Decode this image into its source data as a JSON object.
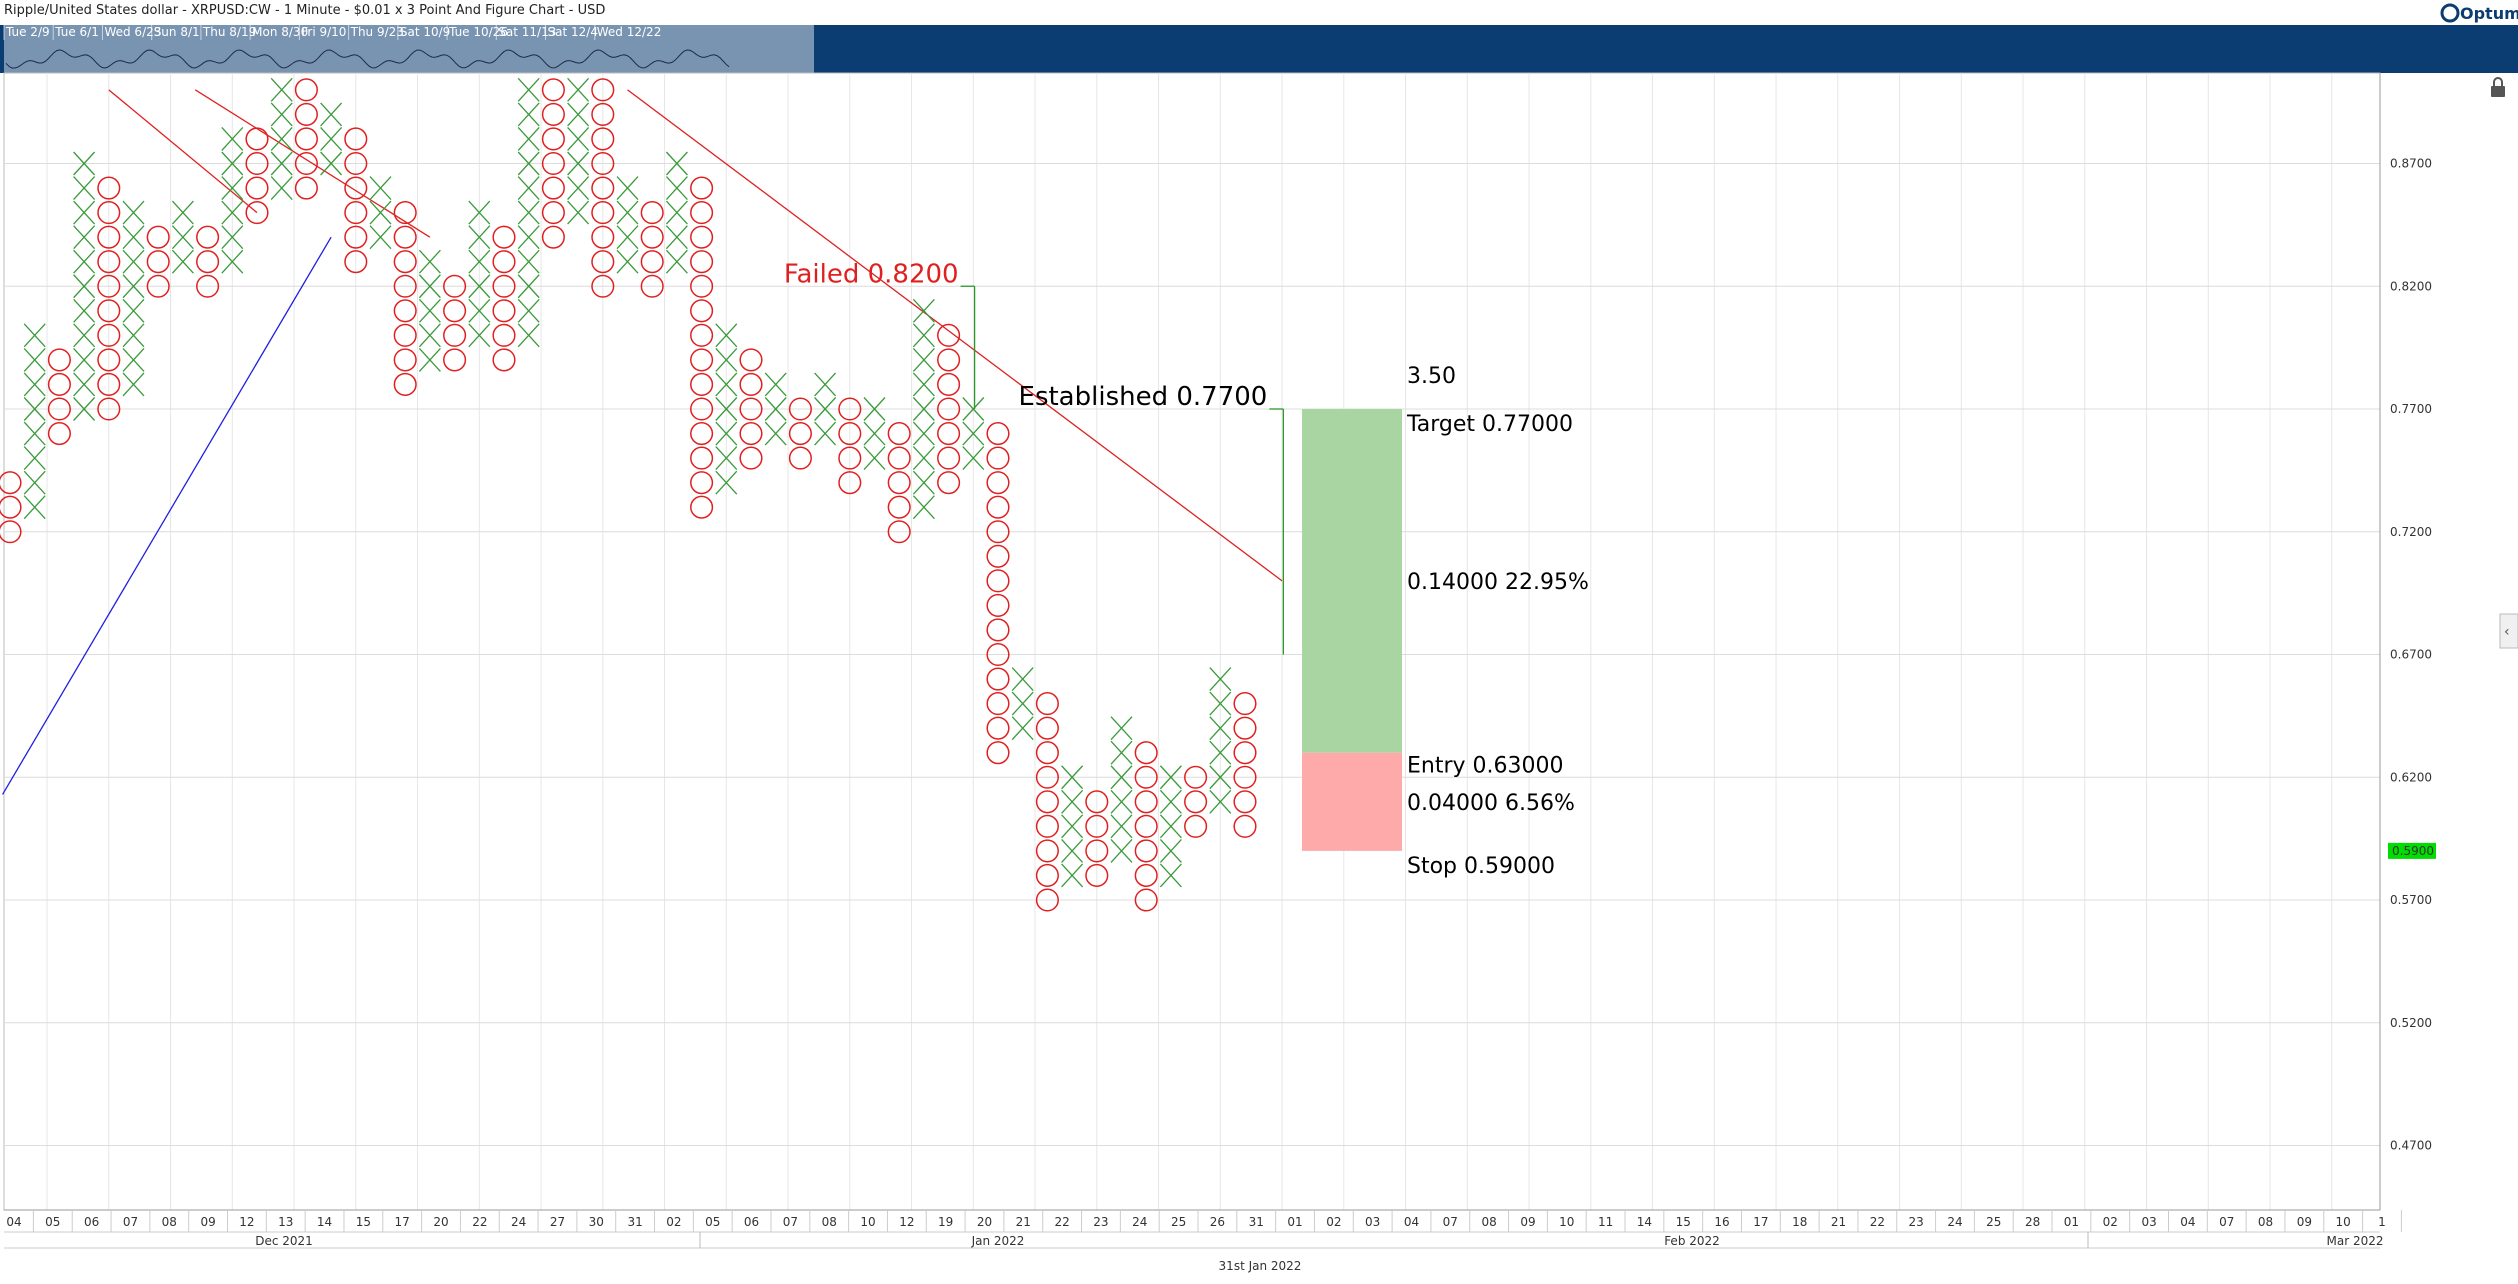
{
  "header": {
    "title": "Ripple/United States dollar - XRPUSD:CW - 1 Minute - $0.01 x 3 Point And Figure Chart - USD",
    "brand": "Optuma",
    "navigator_labels": [
      "Tue 2/9",
      "Tue 6/1",
      "Wed 6/23",
      "Sun 8/1",
      "Thu 8/19",
      "Mon 8/30",
      "Fri 9/10",
      "Thu 9/23",
      "Sat 10/9",
      "Tue 10/26",
      "Sat 11/13",
      "Sat 12/4",
      "Wed 12/22"
    ]
  },
  "footer": {
    "date_label": "31st Jan 2022"
  },
  "colors": {
    "x_mark": "#3a9a3a",
    "o_mark": "#e02020",
    "trend_down": "#e02020",
    "trend_up": "#2020e0",
    "target_zone": "#a8d5a2",
    "stop_zone": "#ffaaaa",
    "price_badge": "#00dd00",
    "nav_bg": "#0b3d72"
  },
  "chart_data": {
    "type": "point_and_figure",
    "box_size": 0.01,
    "reversal": 3,
    "ylim": [
      0.44,
      0.9
    ],
    "y_ticks": [
      "0.8700",
      "0.8200",
      "0.7700",
      "0.7200",
      "0.6700",
      "0.6200",
      "0.5700",
      "0.5200",
      "0.4700"
    ],
    "current_price": "0.5900",
    "x_labels": [
      "04",
      "05",
      "06",
      "07",
      "08",
      "09",
      "12",
      "13",
      "14",
      "15",
      "17",
      "20",
      "22",
      "24",
      "27",
      "30",
      "31",
      "02",
      "05",
      "06",
      "07",
      "08",
      "10",
      "12",
      "19",
      "20",
      "21",
      "22",
      "23",
      "24",
      "25",
      "26",
      "31",
      "01",
      "02",
      "03",
      "04",
      "07",
      "08",
      "09",
      "10",
      "11",
      "14",
      "15",
      "16",
      "17",
      "18",
      "21",
      "22",
      "23",
      "24",
      "25",
      "28",
      "01",
      "02",
      "03",
      "04",
      "07",
      "08",
      "09",
      "10",
      "1"
    ],
    "month_labels": [
      "Dec 2021",
      "Jan 2022",
      "Feb 2022",
      "Mar 2022"
    ],
    "columns": [
      {
        "type": "O",
        "high": 0.74,
        "low": 0.72
      },
      {
        "type": "X",
        "low": 0.73,
        "high": 0.8
      },
      {
        "type": "O",
        "high": 0.79,
        "low": 0.76
      },
      {
        "type": "X",
        "low": 0.77,
        "high": 0.87
      },
      {
        "type": "O",
        "high": 0.86,
        "low": 0.77
      },
      {
        "type": "X",
        "low": 0.78,
        "high": 0.85
      },
      {
        "type": "O",
        "high": 0.84,
        "low": 0.82
      },
      {
        "type": "X",
        "low": 0.83,
        "high": 0.85
      },
      {
        "type": "O",
        "high": 0.84,
        "low": 0.82
      },
      {
        "type": "X",
        "low": 0.83,
        "high": 0.88
      },
      {
        "type": "O",
        "high": 0.88,
        "low": 0.85
      },
      {
        "type": "X",
        "low": 0.86,
        "high": 0.9
      },
      {
        "type": "O",
        "high": 0.9,
        "low": 0.86
      },
      {
        "type": "X",
        "low": 0.87,
        "high": 0.89
      },
      {
        "type": "O",
        "high": 0.88,
        "low": 0.83
      },
      {
        "type": "X",
        "low": 0.84,
        "high": 0.86
      },
      {
        "type": "O",
        "high": 0.85,
        "low": 0.78
      },
      {
        "type": "X",
        "low": 0.79,
        "high": 0.83
      },
      {
        "type": "O",
        "high": 0.82,
        "low": 0.79
      },
      {
        "type": "X",
        "low": 0.8,
        "high": 0.85
      },
      {
        "type": "O",
        "high": 0.84,
        "low": 0.79
      },
      {
        "type": "X",
        "low": 0.8,
        "high": 0.9
      },
      {
        "type": "O",
        "high": 0.9,
        "low": 0.84
      },
      {
        "type": "X",
        "low": 0.85,
        "high": 0.9
      },
      {
        "type": "O",
        "high": 0.9,
        "low": 0.82
      },
      {
        "type": "X",
        "low": 0.83,
        "high": 0.86
      },
      {
        "type": "O",
        "high": 0.85,
        "low": 0.82
      },
      {
        "type": "X",
        "low": 0.83,
        "high": 0.87
      },
      {
        "type": "O",
        "high": 0.86,
        "low": 0.73
      },
      {
        "type": "X",
        "low": 0.74,
        "high": 0.8
      },
      {
        "type": "O",
        "high": 0.79,
        "low": 0.75
      },
      {
        "type": "X",
        "low": 0.76,
        "high": 0.78
      },
      {
        "type": "O",
        "high": 0.77,
        "low": 0.75
      },
      {
        "type": "X",
        "low": 0.76,
        "high": 0.78
      },
      {
        "type": "O",
        "high": 0.77,
        "low": 0.74
      },
      {
        "type": "X",
        "low": 0.75,
        "high": 0.77
      },
      {
        "type": "O",
        "high": 0.76,
        "low": 0.72
      },
      {
        "type": "X",
        "low": 0.73,
        "high": 0.81
      },
      {
        "type": "O",
        "high": 0.8,
        "low": 0.74
      },
      {
        "type": "X",
        "low": 0.75,
        "high": 0.77
      },
      {
        "type": "O",
        "high": 0.76,
        "low": 0.63
      },
      {
        "type": "X",
        "low": 0.64,
        "high": 0.66
      },
      {
        "type": "O",
        "high": 0.65,
        "low": 0.57
      },
      {
        "type": "X",
        "low": 0.58,
        "high": 0.62
      },
      {
        "type": "O",
        "high": 0.61,
        "low": 0.58
      },
      {
        "type": "X",
        "low": 0.59,
        "high": 0.64
      },
      {
        "type": "O",
        "high": 0.63,
        "low": 0.57
      },
      {
        "type": "X",
        "low": 0.58,
        "high": 0.62
      },
      {
        "type": "O",
        "high": 0.62,
        "low": 0.6
      },
      {
        "type": "X",
        "low": 0.61,
        "high": 0.66
      },
      {
        "type": "O",
        "high": 0.65,
        "low": 0.6
      }
    ],
    "trendlines": [
      {
        "kind": "resistance",
        "from": {
          "col": 4,
          "price": 0.9
        },
        "to": {
          "col": 10,
          "price": 0.85
        }
      },
      {
        "kind": "resistance",
        "from": {
          "col": 7.5,
          "price": 0.9
        },
        "to": {
          "col": 17,
          "price": 0.84
        }
      },
      {
        "kind": "resistance",
        "from": {
          "col": 25,
          "price": 0.9
        },
        "to": {
          "col": 51.5,
          "price": 0.7
        }
      },
      {
        "kind": "support",
        "from": {
          "col": -0.3,
          "price": 0.613
        },
        "to": {
          "col": 13,
          "price": 0.84
        }
      }
    ],
    "annotations": [
      {
        "text": "Failed 0.8200",
        "color": "#e02020",
        "col": 38,
        "price": 0.82
      },
      {
        "text": "Established 0.7700",
        "color": "#000000",
        "col": 50.5,
        "price": 0.77
      }
    ],
    "risk_reward": {
      "ratio": "3.50",
      "target": {
        "label": "Target",
        "value": "0.77000",
        "price": 0.77
      },
      "entry": {
        "label": "Entry",
        "value": "0.63000",
        "price": 0.63
      },
      "stop": {
        "label": "Stop",
        "value": "0.59000",
        "price": 0.59
      },
      "reward": {
        "amount": "0.14000",
        "percent": "22.95%"
      },
      "risk": {
        "amount": "0.04000",
        "percent": "6.56%"
      }
    }
  }
}
